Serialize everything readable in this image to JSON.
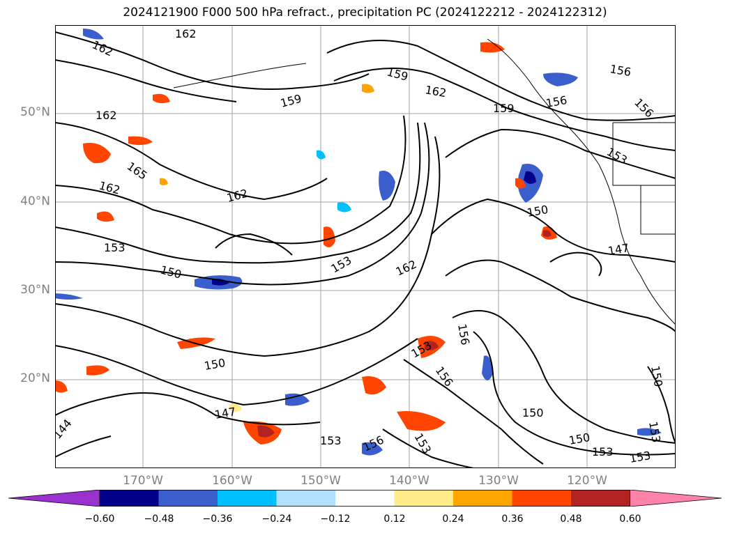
{
  "title": "2024121900 F000 500 hPa refract., precipitation PC (2024122212 - 2024122312)",
  "latitude_labels": [
    {
      "label": "50°N",
      "lat": 50
    },
    {
      "label": "40°N",
      "lat": 40
    },
    {
      "label": "30°N",
      "lat": 30
    },
    {
      "label": "20°N",
      "lat": 20
    }
  ],
  "longitude_labels": [
    {
      "label": "170°W",
      "lon": -170
    },
    {
      "label": "160°W",
      "lon": -160
    },
    {
      "label": "150°W",
      "lon": -150
    },
    {
      "label": "140°W",
      "lon": -140
    },
    {
      "label": "130°W",
      "lon": -130
    },
    {
      "label": "120°W",
      "lon": -120
    }
  ],
  "contour_labels": [
    "162",
    "162",
    "162",
    "165",
    "162",
    "162",
    "153",
    "150",
    "153",
    "162",
    "150",
    "147",
    "144",
    "153",
    "156",
    "153",
    "156",
    "153",
    "156",
    "159",
    "159",
    "162",
    "159",
    "156",
    "156",
    "156",
    "153",
    "150",
    "147",
    "150",
    "150",
    "153",
    "153",
    "150",
    "153"
  ],
  "colorbar": {
    "colors": [
      "#9932cc",
      "#00008b",
      "#3a5fcd",
      "#00bfff",
      "#b0e2ff",
      "#ffffff",
      "#ffec8b",
      "#ffa500",
      "#ff4500",
      "#b22222",
      "#ff82ab"
    ],
    "tick_labels": [
      "−0.60",
      "−0.48",
      "−0.36",
      "−0.24",
      "−0.12",
      "0.12",
      "0.24",
      "0.36",
      "0.48",
      "0.60"
    ]
  }
}
